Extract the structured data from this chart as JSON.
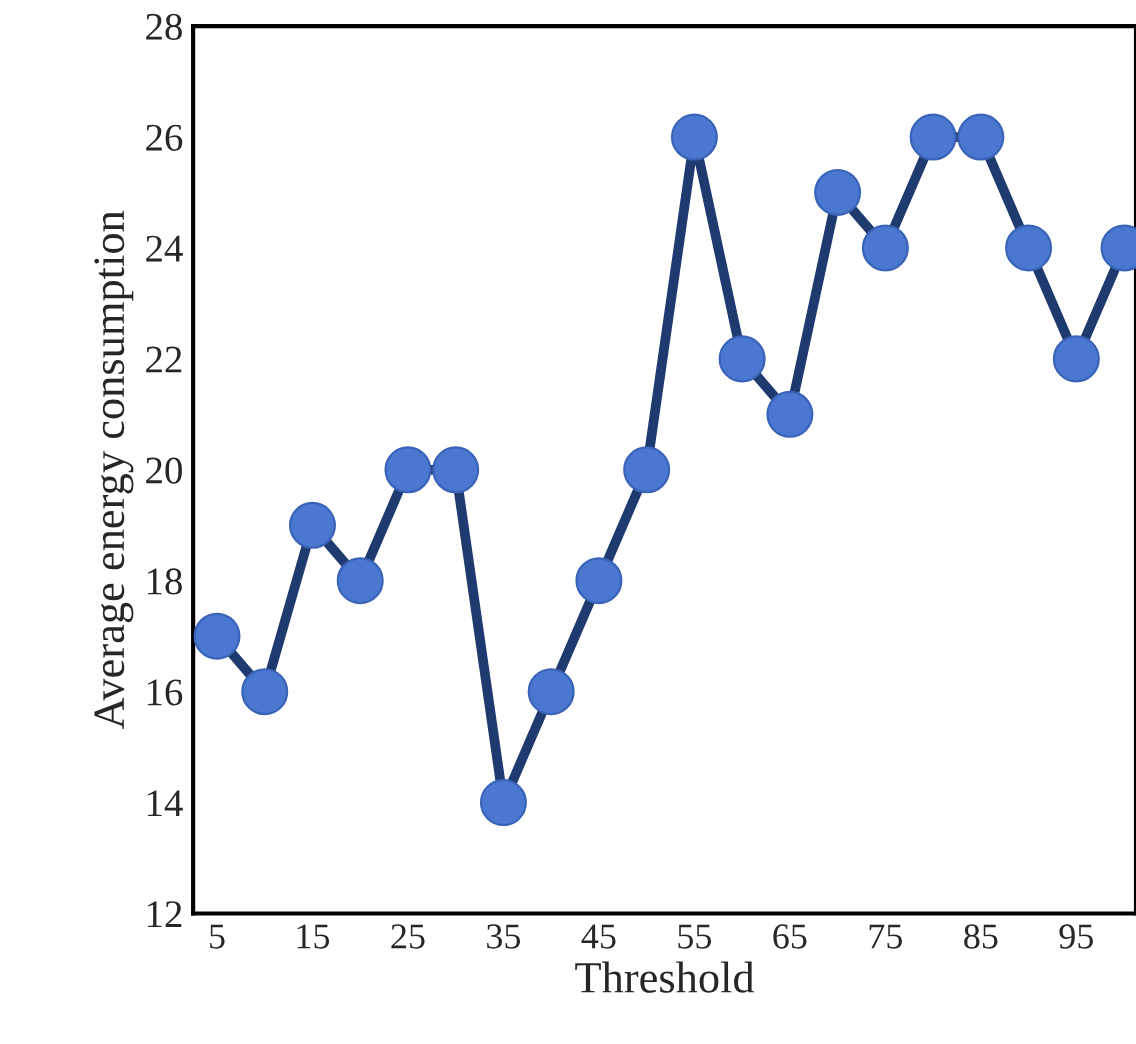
{
  "chart_data": {
    "type": "line",
    "xlabel": "Threshold",
    "ylabel": "Average energy consumption",
    "categories": [
      "5",
      null,
      "15",
      null,
      "25",
      null,
      "35",
      null,
      "45",
      null,
      "55",
      null,
      "65",
      null,
      "75",
      null,
      "85",
      null,
      "95",
      null
    ],
    "series": [
      {
        "color": "#1f3a6e",
        "values": [
          17,
          16,
          19,
          18,
          20,
          20,
          14,
          16,
          18,
          20,
          26,
          22,
          21,
          25,
          24,
          26,
          26,
          24,
          22,
          24
        ]
      }
    ],
    "ylim": [
      12,
      28
    ],
    "yticks": [
      12,
      14,
      16,
      18,
      20,
      22,
      24,
      26,
      28
    ],
    "grid": false,
    "marker": "circle",
    "line_style": "solid"
  }
}
